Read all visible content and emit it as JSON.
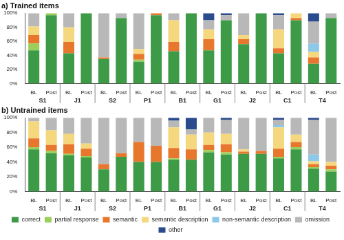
{
  "chart_data": [
    {
      "type": "bar",
      "title": "a) Trained items",
      "stacked": true,
      "grid": false,
      "categories": [
        "BL",
        "Post",
        "BL",
        "Post",
        "BL",
        "Post",
        "BL",
        "Post",
        "BL",
        "Post",
        "BL",
        "Post",
        "BL",
        "Post",
        "BL",
        "Post",
        "BL",
        "Post"
      ],
      "groups": [
        "S1",
        "J1",
        "S2",
        "P1",
        "B1",
        "G1",
        "J2",
        "C1",
        "T4"
      ],
      "ylim": [
        0,
        100
      ],
      "yticks": [
        {
          "value": 0,
          "label": "0%"
        },
        {
          "value": 20,
          "label": "20%"
        },
        {
          "value": 40,
          "label": "40%"
        },
        {
          "value": 60,
          "label": "60%"
        },
        {
          "value": 80,
          "label": "80%"
        },
        {
          "value": 100,
          "label": "100%"
        }
      ],
      "series": [
        {
          "name": "correct",
          "color": "#3d9a46",
          "values": [
            47,
            97,
            43,
            100,
            35,
            93,
            31,
            97,
            46,
            100,
            47,
            90,
            56,
            100,
            43,
            90,
            28,
            93
          ]
        },
        {
          "name": "partial response",
          "color": "#9bcf5a",
          "values": [
            10,
            3,
            0,
            0,
            0,
            0,
            3,
            0,
            0,
            0,
            0,
            0,
            0,
            0,
            0,
            0,
            0,
            0
          ]
        },
        {
          "name": "semantic",
          "color": "#e8772e",
          "values": [
            12,
            0,
            16,
            0,
            2,
            0,
            8,
            3,
            13,
            0,
            16,
            0,
            7,
            0,
            7,
            3,
            9,
            0
          ]
        },
        {
          "name": "semantic description",
          "color": "#f5d77e",
          "values": [
            12,
            0,
            21,
            0,
            0,
            0,
            7,
            0,
            31,
            0,
            14,
            0,
            6,
            0,
            27,
            7,
            8,
            0
          ]
        },
        {
          "name": "non-semantic description",
          "color": "#8ec8e8",
          "values": [
            0,
            0,
            0,
            0,
            0,
            0,
            0,
            0,
            0,
            0,
            0,
            0,
            0,
            0,
            0,
            0,
            12,
            0
          ]
        },
        {
          "name": "omission",
          "color": "#b8b8b8",
          "values": [
            19,
            0,
            20,
            0,
            63,
            7,
            51,
            0,
            10,
            0,
            13,
            7,
            31,
            0,
            20,
            0,
            31,
            7
          ]
        },
        {
          "name": "other",
          "color": "#2b4c8c",
          "values": [
            0,
            0,
            0,
            0,
            0,
            0,
            0,
            0,
            0,
            0,
            10,
            3,
            0,
            0,
            3,
            0,
            12,
            0
          ]
        }
      ]
    },
    {
      "type": "bar",
      "title": "b) Untrained items",
      "stacked": true,
      "grid": false,
      "legend": "bottom",
      "categories": [
        "BL",
        "Post",
        "BL",
        "Post",
        "BL",
        "Post",
        "BL",
        "Post",
        "BL",
        "Post",
        "BL",
        "Post",
        "BL",
        "Post",
        "BL",
        "Post",
        "BL",
        "Post"
      ],
      "groups": [
        "S1",
        "J1",
        "S2",
        "P1",
        "B1",
        "G1",
        "J2",
        "C1",
        "T4"
      ],
      "ylim": [
        0,
        100
      ],
      "yticks": [
        {
          "value": 0,
          "label": "0%"
        },
        {
          "value": 20,
          "label": "20%"
        },
        {
          "value": 40,
          "label": "40%"
        },
        {
          "value": 60,
          "label": "60%"
        },
        {
          "value": 80,
          "label": "80%"
        },
        {
          "value": 100,
          "label": "100%"
        }
      ],
      "series": [
        {
          "name": "correct",
          "color": "#3d9a46",
          "values": [
            57,
            52,
            49,
            46,
            30,
            47,
            40,
            40,
            43,
            43,
            53,
            50,
            51,
            51,
            45,
            57,
            31,
            27
          ]
        },
        {
          "name": "partial response",
          "color": "#9bcf5a",
          "values": [
            3,
            3,
            2,
            2,
            0,
            0,
            0,
            0,
            2,
            0,
            3,
            3,
            0,
            0,
            2,
            3,
            2,
            3
          ]
        },
        {
          "name": "semantic",
          "color": "#e8772e",
          "values": [
            12,
            8,
            13,
            10,
            7,
            5,
            27,
            22,
            14,
            14,
            7,
            11,
            3,
            4,
            11,
            7,
            4,
            5
          ]
        },
        {
          "name": "semantic description",
          "color": "#f5d77e",
          "values": [
            23,
            20,
            14,
            7,
            0,
            0,
            0,
            0,
            28,
            20,
            17,
            14,
            3,
            0,
            29,
            10,
            4,
            5
          ]
        },
        {
          "name": "non-semantic description",
          "color": "#8ec8e8",
          "values": [
            0,
            0,
            0,
            0,
            0,
            0,
            0,
            0,
            0,
            0,
            0,
            0,
            0,
            0,
            3,
            0,
            9,
            0
          ]
        },
        {
          "name": "omission",
          "color": "#b8b8b8",
          "values": [
            5,
            17,
            22,
            35,
            63,
            48,
            33,
            38,
            9,
            7,
            20,
            19,
            43,
            45,
            7,
            23,
            47,
            60
          ]
        },
        {
          "name": "other",
          "color": "#2b4c8c",
          "values": [
            0,
            0,
            0,
            0,
            0,
            0,
            0,
            0,
            4,
            16,
            0,
            3,
            0,
            0,
            3,
            0,
            3,
            0
          ]
        }
      ]
    }
  ]
}
